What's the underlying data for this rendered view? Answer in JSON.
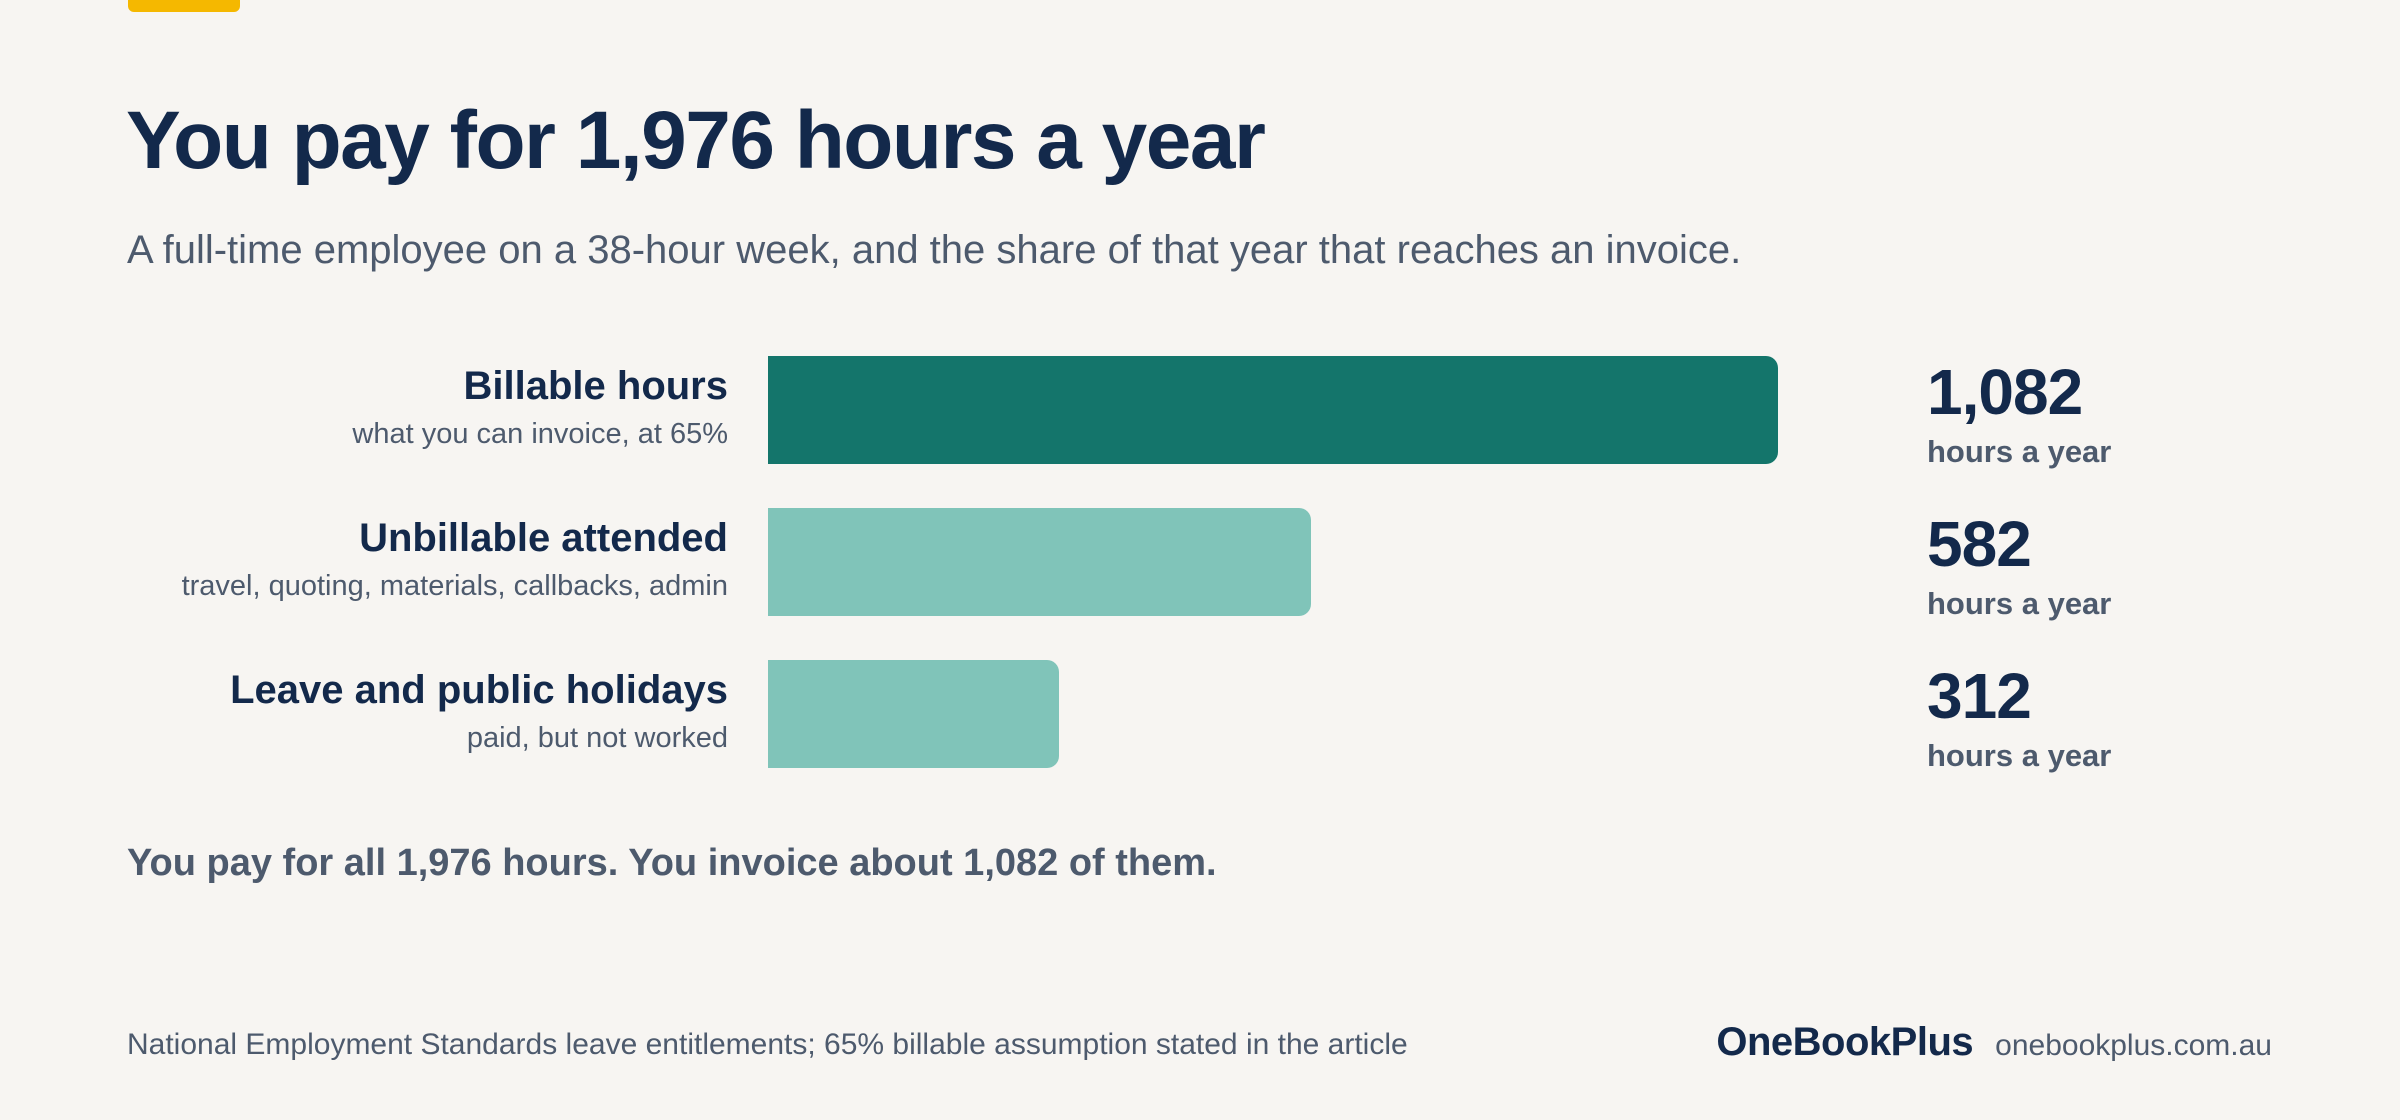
{
  "header": {
    "title": "You pay for 1,976 hours a year",
    "subtitle": "A full-time employee on a 38-hour week, and the share of that year that reaches an invoice."
  },
  "colors": {
    "accent": "#f5b800",
    "billable": "#14756b",
    "other": "#80c4b9",
    "text_dark": "#13294b",
    "text_muted": "#4d5a6d",
    "background": "#f7f5f2"
  },
  "chart_data": {
    "type": "bar",
    "orientation": "horizontal",
    "title": "You pay for 1,976 hours a year",
    "subtitle": "A full-time employee on a 38-hour week, and the share of that year that reaches an invoice.",
    "categories": [
      "Billable hours",
      "Unbillable attended",
      "Leave and public holidays"
    ],
    "descriptions": [
      "what you can invoice, at 65%",
      "travel, quoting, materials, callbacks, admin",
      "paid, but not worked"
    ],
    "values": [
      1082,
      582,
      312
    ],
    "value_labels": [
      "1,082",
      "582",
      "312"
    ],
    "unit_label": "hours a year",
    "xlim": [
      0,
      1082
    ],
    "grid": false,
    "legend": "none"
  },
  "summary": "You pay for all 1,976 hours. You invoice about 1,082 of them.",
  "footer": {
    "source": "National Employment Standards leave entitlements; 65% billable assumption stated in the article",
    "brand": "OneBookPlus",
    "url": "onebookplus.com.au"
  }
}
